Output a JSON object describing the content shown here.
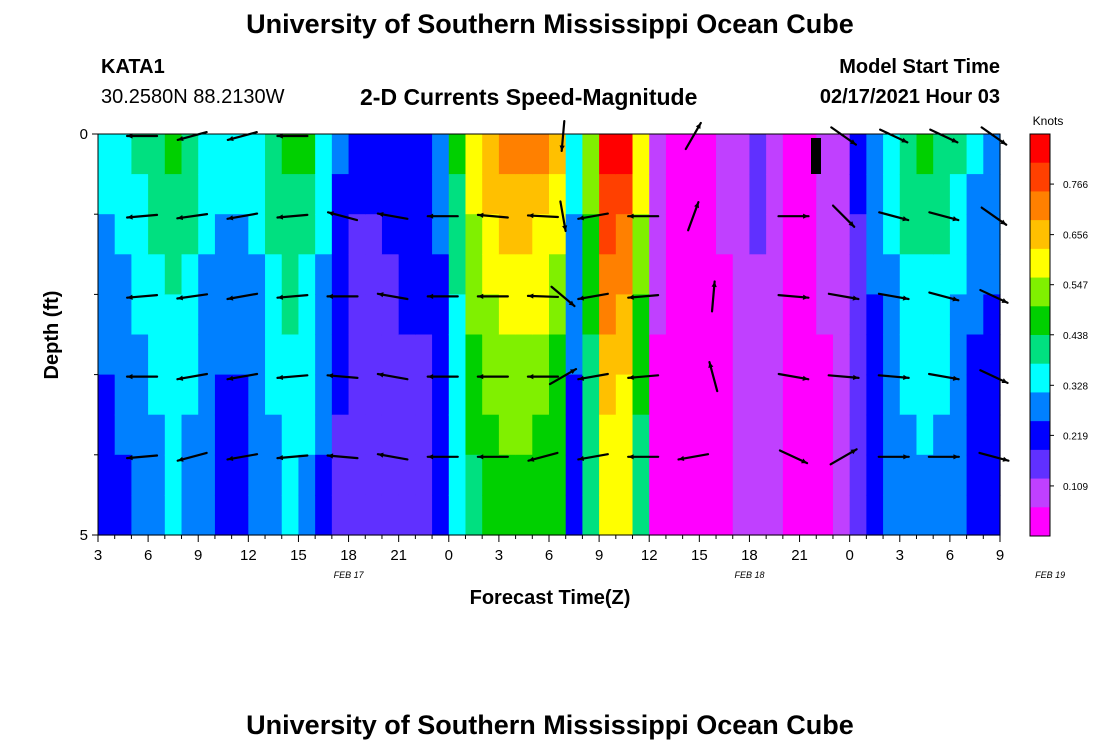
{
  "page": {
    "title_top": "University of Southern Mississippi Ocean Cube",
    "title_bottom": "University of Southern Mississippi Ocean Cube",
    "station_id": "KATA1",
    "station_coords": "30.2580N 88.2130W",
    "model_label": "Model Start Time",
    "model_time": "02/17/2021 Hour 03"
  },
  "chart_data": {
    "type": "heatmap",
    "title": "2-D Currents Speed-Magnitude",
    "xlabel": "Forecast Time(Z)",
    "ylabel": "Depth (ft)",
    "y_tick_labels": [
      "0",
      "5"
    ],
    "y_range": [
      0,
      5
    ],
    "x_tick_labels": [
      "3",
      "6",
      "9",
      "12",
      "15",
      "18",
      "21",
      "0",
      "3",
      "6",
      "9",
      "12",
      "15",
      "18",
      "21",
      "0",
      "3",
      "6",
      "9"
    ],
    "date_labels": [
      {
        "text": "FEB 17",
        "after_hour_index": 5
      },
      {
        "text": "FEB 18",
        "after_hour_index": 13
      },
      {
        "text": "FEB 19",
        "after_hour_index": 19
      }
    ],
    "forecast_hours_range": [
      0,
      54
    ],
    "depth_levels": 5,
    "colorbar": {
      "unit": "Knots",
      "ticks": [
        "0.766",
        "0.656",
        "0.547",
        "0.438",
        "0.328",
        "0.219",
        "0.109"
      ],
      "tick_values": [
        0.766,
        0.656,
        0.547,
        0.438,
        0.328,
        0.219,
        0.109
      ],
      "range": [
        0,
        0.875
      ],
      "colors": [
        "#ff00ff",
        "#c040ff",
        "#6030ff",
        "#0000ff",
        "#0080ff",
        "#00ffff",
        "#00e080",
        "#00d000",
        "#80f000",
        "#ffff00",
        "#ffc000",
        "#ff8000",
        "#ff4000",
        "#ff0000"
      ]
    },
    "speed_profile_knots": [
      0.33,
      0.35,
      0.39,
      0.43,
      0.45,
      0.42,
      0.36,
      0.33,
      0.33,
      0.36,
      0.42,
      0.46,
      0.44,
      0.35,
      0.25,
      0.2,
      0.2,
      0.22,
      0.23,
      0.24,
      0.28,
      0.45,
      0.62,
      0.68,
      0.7,
      0.7,
      0.69,
      0.63,
      0.33,
      0.55,
      0.84,
      0.82,
      0.6,
      0.08,
      0.04,
      0.02,
      0.03,
      0.07,
      0.11,
      0.14,
      0.1,
      0.04,
      0.05,
      0.08,
      0.09,
      0.2,
      0.3,
      0.36,
      0.42,
      0.44,
      0.43,
      0.38,
      0.32,
      0.3
    ],
    "depth_factors": [
      1.0,
      0.95,
      0.9,
      0.85,
      0.82,
      0.78,
      0.75,
      0.72,
      0.7,
      0.7
    ],
    "vectors": [
      {
        "hour": 1.8,
        "angle": [
          180,
          185,
          185,
          180,
          185
        ]
      },
      {
        "hour": 4.8,
        "angle": [
          195,
          188,
          188,
          190,
          195
        ]
      },
      {
        "hour": 7.8,
        "angle": [
          195,
          190,
          190,
          190,
          190
        ]
      },
      {
        "hour": 10.8,
        "angle": [
          180,
          185,
          185,
          185,
          185
        ]
      },
      {
        "hour": 13.8,
        "angle": [
          null,
          165,
          180,
          175,
          175
        ]
      },
      {
        "hour": 16.8,
        "angle": [
          null,
          170,
          170,
          170,
          170
        ]
      },
      {
        "hour": 19.8,
        "angle": [
          null,
          180,
          180,
          180,
          180
        ]
      },
      {
        "hour": 22.8,
        "angle": [
          null,
          175,
          180,
          180,
          180
        ]
      },
      {
        "hour": 25.8,
        "angle": [
          null,
          177,
          178,
          180,
          195
        ]
      },
      {
        "hour": 27.0,
        "angle": [
          -95,
          -80,
          -40,
          30,
          null
        ]
      },
      {
        "hour": 28.8,
        "angle": [
          null,
          190,
          190,
          190,
          190
        ]
      },
      {
        "hour": 31.8,
        "angle": [
          null,
          180,
          185,
          185,
          180
        ]
      },
      {
        "hour": 34.8,
        "angle": [
          60,
          70,
          null,
          null,
          190
        ]
      },
      {
        "hour": 36.0,
        "angle": [
          null,
          null,
          85,
          105,
          null
        ]
      },
      {
        "hour": 40.8,
        "angle": [
          null,
          0,
          -5,
          -10,
          -25
        ]
      },
      {
        "hour": 43.2,
        "angle": [
          null,
          null,
          null,
          null,
          null
        ]
      },
      {
        "hour": 43.8,
        "angle": [
          -35,
          -45,
          -10,
          -5,
          30
        ]
      },
      {
        "hour": 46.8,
        "angle": [
          -25,
          -15,
          -10,
          -5,
          0
        ]
      },
      {
        "hour": 49.8,
        "angle": [
          -25,
          -15,
          -15,
          -10,
          0
        ]
      },
      {
        "hour": 52.8,
        "angle": [
          -35,
          -35,
          -25,
          -25,
          -15
        ]
      }
    ]
  }
}
